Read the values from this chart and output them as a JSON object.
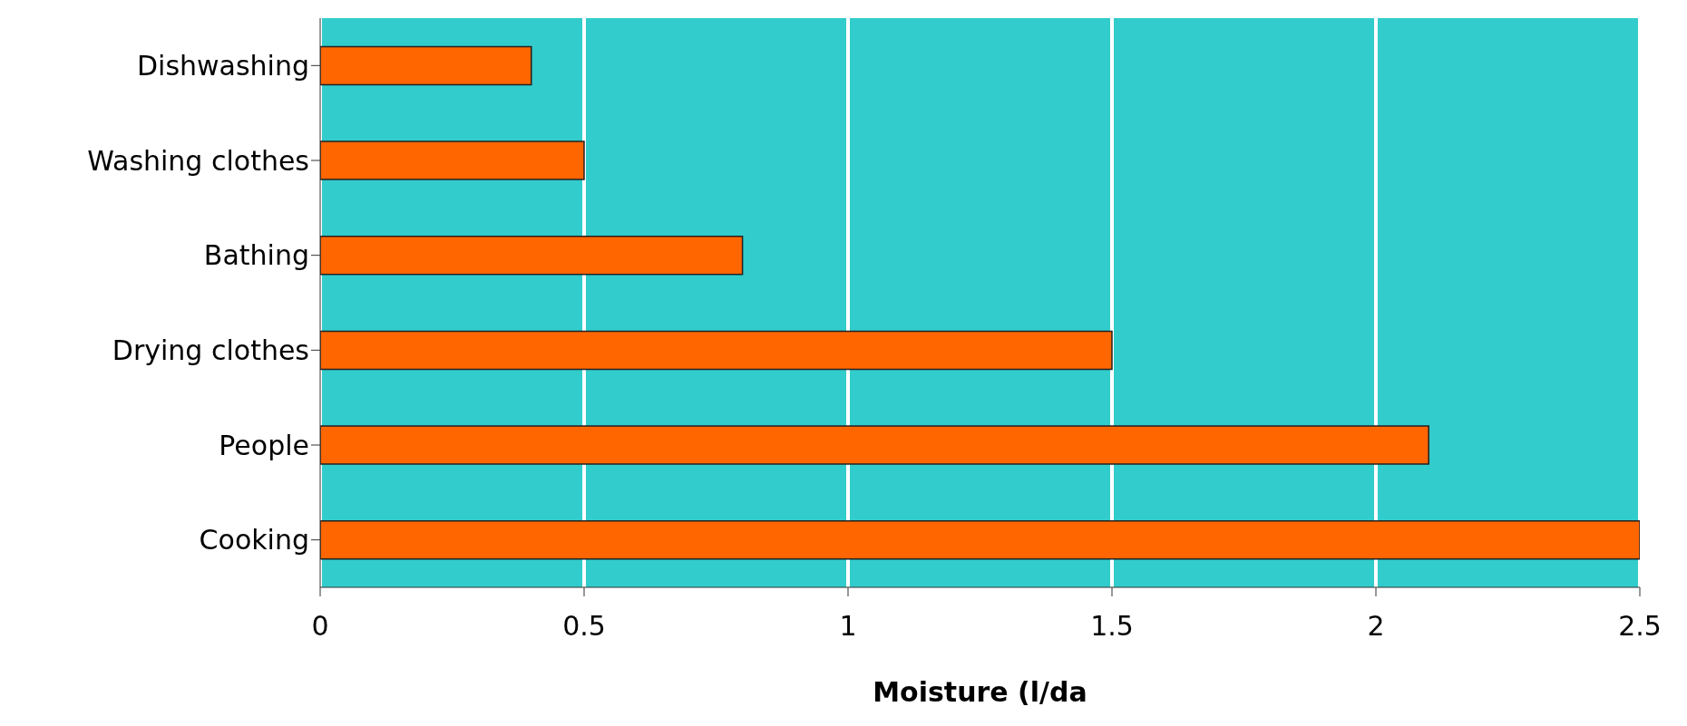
{
  "chart_data": {
    "type": "bar",
    "orientation": "horizontal",
    "xlabel": "Moisture (l/da",
    "categories": [
      "Dishwashing",
      "Washing clothes",
      "Bathing",
      "Drying clothes",
      "People",
      "Cooking"
    ],
    "values": [
      0.4,
      0.5,
      0.8,
      1.5,
      2.1,
      2.5
    ],
    "color": "#ff6600",
    "xlim": [
      0,
      2.5
    ],
    "xticks": [
      0,
      0.5,
      1,
      1.5,
      2,
      2.5
    ],
    "grid": "x"
  }
}
